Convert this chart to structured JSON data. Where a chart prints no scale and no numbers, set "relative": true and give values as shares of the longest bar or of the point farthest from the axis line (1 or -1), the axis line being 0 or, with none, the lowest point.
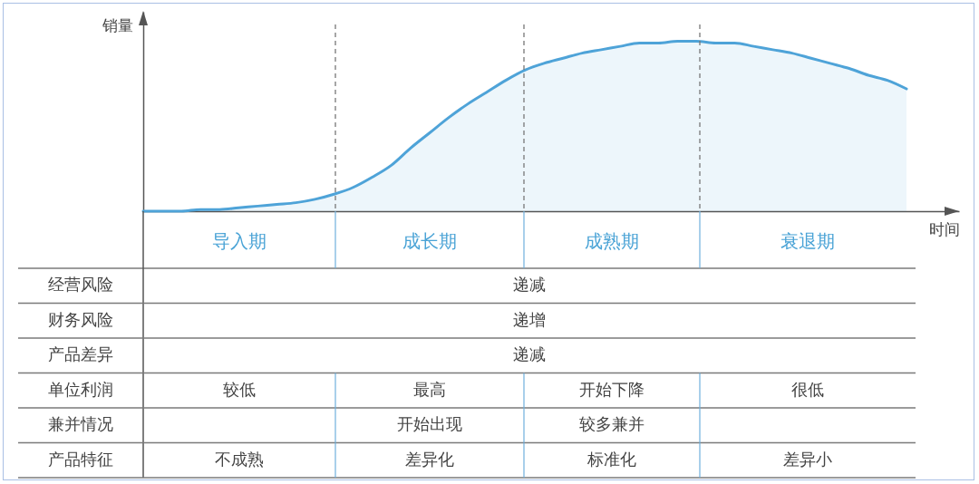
{
  "chart_data": [
    {
      "type": "area",
      "relative": true,
      "xlabel": "时间",
      "ylabel": "销量",
      "color": "#4ea3d8",
      "categories": [
        null,
        null,
        null,
        null,
        null,
        null,
        null,
        null,
        null,
        null,
        null,
        null,
        null,
        null,
        null,
        null,
        null,
        null,
        null,
        null,
        null,
        null,
        null,
        null,
        null,
        null,
        null,
        null,
        null,
        null,
        null,
        null,
        null,
        null,
        null,
        null,
        null,
        null,
        null,
        null,
        null
      ],
      "values": [
        0,
        0,
        0,
        0.01,
        0.01,
        0.02,
        0.03,
        0.04,
        0.05,
        0.07,
        0.1,
        0.14,
        0.2,
        0.27,
        0.37,
        0.46,
        0.55,
        0.63,
        0.7,
        0.77,
        0.83,
        0.87,
        0.9,
        0.93,
        0.95,
        0.97,
        0.99,
        0.99,
        1,
        1,
        0.99,
        0.99,
        0.97,
        0.95,
        0.93,
        0.9,
        0.87,
        0.84,
        0.8,
        0.77,
        0.72
      ]
    },
    {
      "type": "other",
      "categories": [
        "导入期",
        "成长期",
        "成熟期",
        "衰退期"
      ],
      "y_categories": [
        "经营风险",
        "财务风险",
        "产品差异",
        "单位利润",
        "兼并情况",
        "产品特征"
      ],
      "cell_labels": [
        [
          "递减"
        ],
        [
          "递增"
        ],
        [
          "递减"
        ],
        [
          "较低",
          "最高",
          "开始下降",
          "很低"
        ],
        [
          null,
          "开始出现",
          "较多兼并",
          null
        ],
        [
          "不成熟",
          "差异化",
          "标准化",
          "差异小"
        ]
      ]
    }
  ]
}
